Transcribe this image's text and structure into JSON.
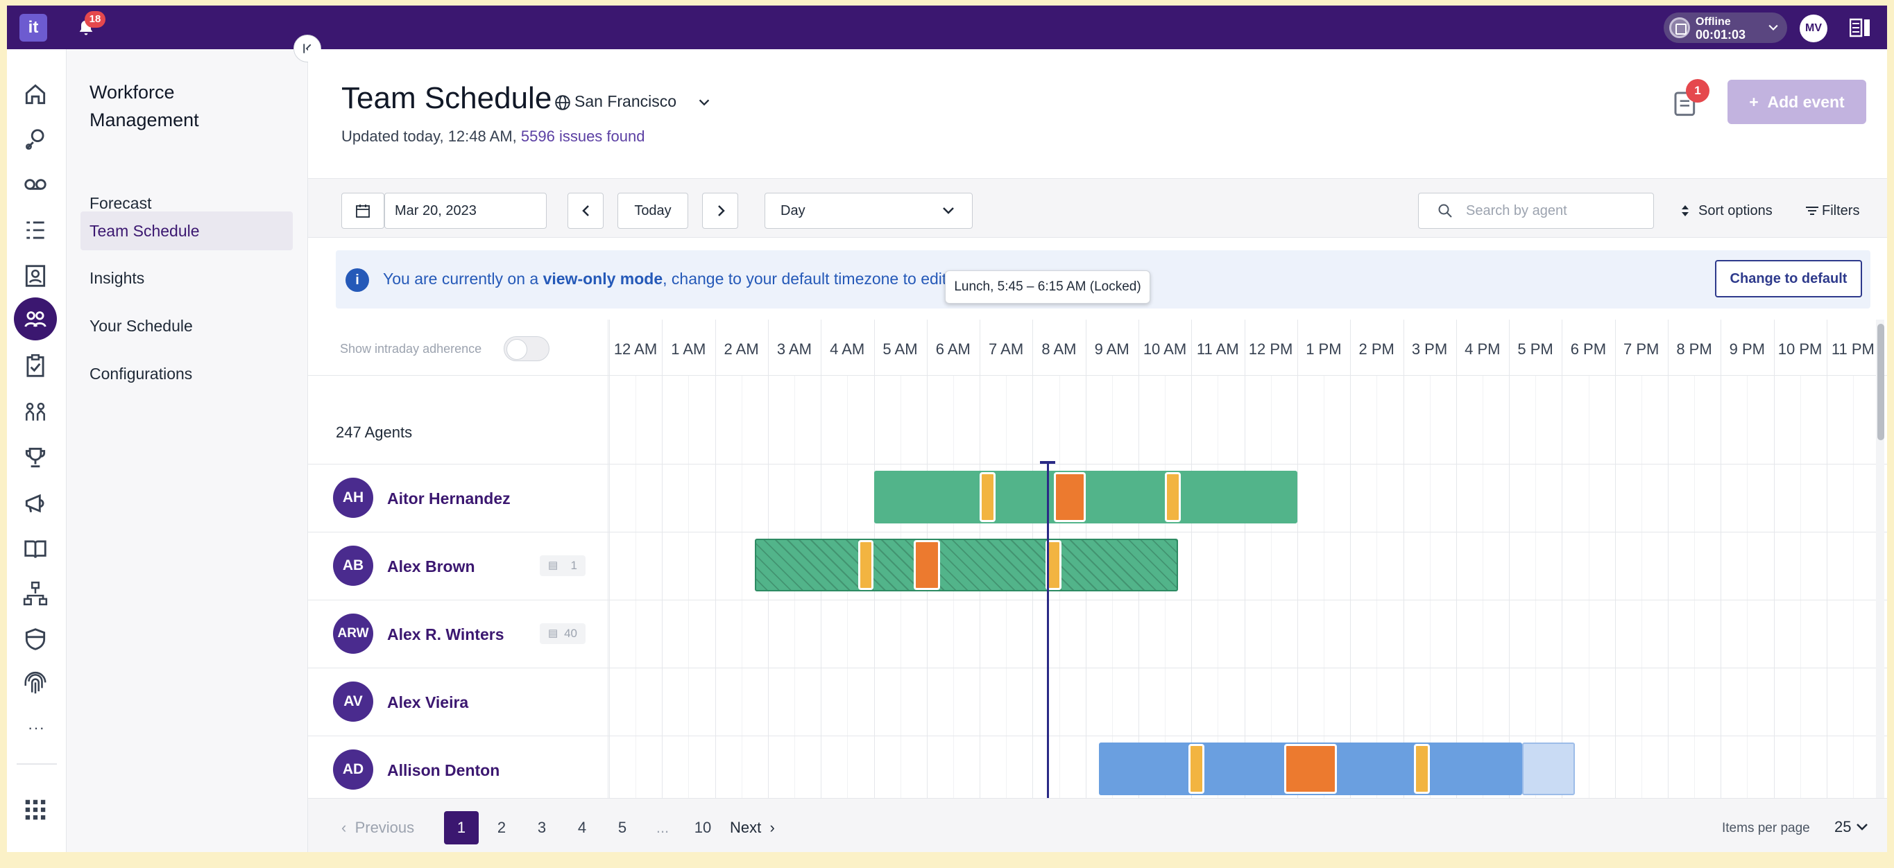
{
  "topbar": {
    "logo": "it",
    "notification_count": "18",
    "status_label": "Offline",
    "status_time": "00:01:03",
    "user_initials": "MV"
  },
  "rail": {
    "icons": [
      "home-icon",
      "routing-icon",
      "voicemail-icon",
      "queue-list-icon",
      "contact-book-icon",
      "workforce-icon",
      "clipboard-icon",
      "team-icon",
      "trophy-icon",
      "megaphone-icon",
      "knowledge-book-icon",
      "flow-icon",
      "shield-icon",
      "fingerprint-icon"
    ],
    "more": "···"
  },
  "sidebar": {
    "title": "Workforce Management",
    "items": [
      {
        "label": "Forecast",
        "active": false
      },
      {
        "label": "Team Schedule",
        "active": true
      },
      {
        "label": "Insights",
        "active": false
      },
      {
        "label": "Your Schedule",
        "active": false
      },
      {
        "label": "Configurations",
        "active": false
      }
    ]
  },
  "header": {
    "title": "Team Schedule",
    "location": "San Francisco",
    "updated_text": "Updated today, 12:48 AM,",
    "issues_link": "5596 issues found",
    "notes_badge": "1",
    "add_event": "Add event"
  },
  "toolbar": {
    "date": "Mar 20, 2023",
    "today": "Today",
    "view": "Day",
    "search_placeholder": "Search by agent",
    "sort": "Sort options",
    "filters": "Filters"
  },
  "banner": {
    "text_before": "You are currently on a ",
    "text_bold": "view-only mode",
    "text_after": ", change to your default timezone to edit",
    "button": "Change to default"
  },
  "grid": {
    "adherence_label": "Show intraday adherence",
    "agents_count": "247 Agents",
    "hours": [
      "12 AM",
      "1 AM",
      "2 AM",
      "3 AM",
      "4 AM",
      "5 AM",
      "6 AM",
      "7 AM",
      "8 AM",
      "9 AM",
      "10 AM",
      "11 AM",
      "12 PM",
      "1 PM",
      "2 PM",
      "3 PM",
      "4 PM",
      "5 PM",
      "6 PM",
      "7 PM",
      "8 PM",
      "9 PM",
      "10 PM",
      "11 PM"
    ],
    "current_time_hours": 8.27,
    "agents": [
      {
        "initials": "AH",
        "name": "Aitor Hernandez",
        "chip": "",
        "shift": {
          "start": 5.0,
          "end": 13.0,
          "style": "green"
        },
        "breaks": [
          {
            "start": 7.0,
            "end": 7.3
          },
          {
            "start": 10.5,
            "end": 10.8
          }
        ],
        "lunch": [
          {
            "start": 8.4,
            "end": 9.0
          }
        ]
      },
      {
        "initials": "AB",
        "name": "Alex Brown",
        "chip": "1",
        "shift": {
          "start": 2.75,
          "end": 10.75,
          "style": "hatched"
        },
        "breaks": [
          {
            "start": 4.7,
            "end": 5.0
          },
          {
            "start": 8.25,
            "end": 8.55
          }
        ],
        "lunch": [
          {
            "start": 5.75,
            "end": 6.25
          }
        ]
      },
      {
        "initials": "ARW",
        "name": "Alex R. Winters",
        "chip": "40",
        "shift": null,
        "breaks": [],
        "lunch": []
      },
      {
        "initials": "AV",
        "name": "Alex Vieira",
        "chip": "",
        "shift": null,
        "breaks": [],
        "lunch": []
      },
      {
        "initials": "AD",
        "name": "Allison Denton",
        "chip": "",
        "shift": {
          "start": 9.25,
          "end": 17.25,
          "style": "blue"
        },
        "tail": {
          "start": 17.25,
          "end": 18.25
        },
        "breaks": [
          {
            "start": 10.95,
            "end": 11.25
          },
          {
            "start": 15.2,
            "end": 15.5
          }
        ],
        "lunch": [
          {
            "start": 12.75,
            "end": 13.75
          }
        ]
      }
    ],
    "tooltip": "Lunch, 5:45 – 6:15 AM (Locked)"
  },
  "pagination": {
    "previous": "Previous",
    "pages": [
      "1",
      "2",
      "3",
      "4",
      "5",
      "...",
      "10"
    ],
    "active_page": "1",
    "next": "Next",
    "items_per_page_label": "Items per page",
    "items_per_page": "25"
  },
  "colors": {
    "brand": "#3B1770",
    "shift_green": "#52B48A",
    "shift_blue": "#6A9FE0",
    "break": "#F2B441",
    "lunch": "#EC7A2F"
  }
}
